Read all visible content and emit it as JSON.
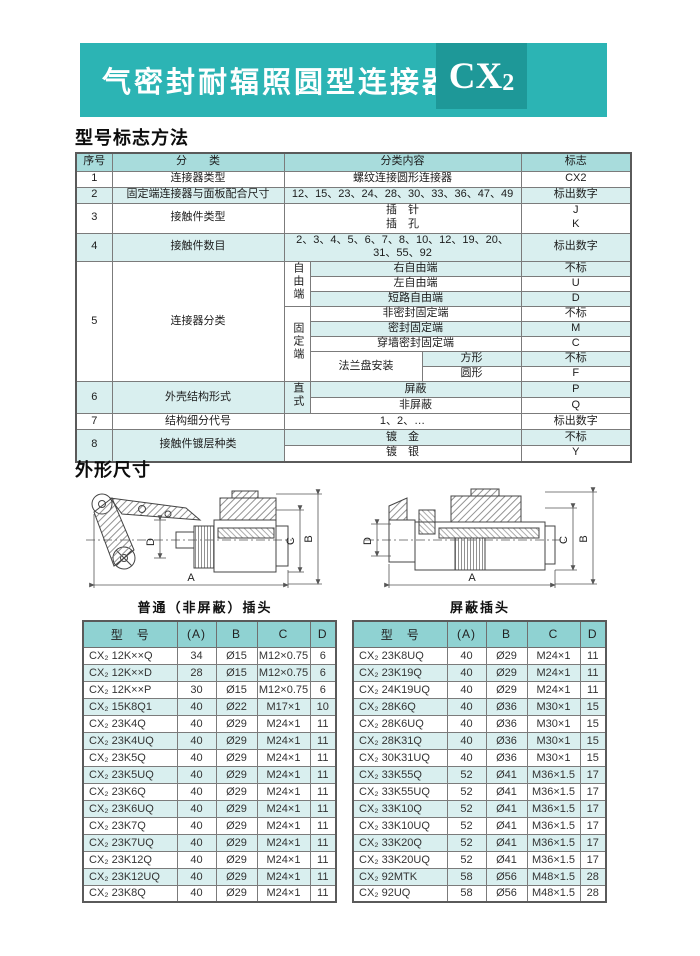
{
  "banner": {
    "title": "气密封耐辐照圆型连接器",
    "model_main": "CX",
    "model_sub": "2"
  },
  "sections": {
    "marking": "型号标志方法",
    "outline": "外形尺寸"
  },
  "marking_table": {
    "headers": {
      "no": "序号",
      "category": "分　　类",
      "content": "分类内容",
      "mark": "标志"
    },
    "r1": {
      "no": "1",
      "cat": "连接器类型",
      "content": "螺纹连接圆形连接器",
      "mark": "CX2"
    },
    "r2": {
      "no": "2",
      "cat": "固定端连接器与面板配合尺寸",
      "content": "12、15、23、24、28、30、33、36、47、49",
      "mark": "标出数字"
    },
    "r3": {
      "no": "3",
      "cat": "接触件类型",
      "line1": "插　针",
      "mark1": "J",
      "line2": "插　孔",
      "mark2": "K"
    },
    "r4": {
      "no": "4",
      "cat": "接触件数目",
      "content": "2、3、4、5、6、7、8、10、12、19、20、31、55、92",
      "mark": "标出数字"
    },
    "r5": {
      "no": "5",
      "cat": "连接器分类",
      "free_group": "自由端",
      "rows_free": [
        {
          "label": "右自由端",
          "mark": "不标"
        },
        {
          "label": "左自由端",
          "mark": "U"
        },
        {
          "label": "短路自由端",
          "mark": "D"
        }
      ],
      "fixed_group": "固定端",
      "rows_fixed": [
        {
          "label": "非密封固定端",
          "mark": "不标"
        },
        {
          "label": "密封固定端",
          "mark": "M"
        },
        {
          "label": "穿墙密封固定端",
          "mark": "C"
        }
      ],
      "flange_label": "法兰盘安装",
      "flange_rows": [
        {
          "label": "方形",
          "mark": "不标"
        },
        {
          "label": "圆形",
          "mark": "F"
        }
      ]
    },
    "r6": {
      "no": "6",
      "cat": "外壳结构形式",
      "group": "直式",
      "rows": [
        {
          "label": "屏蔽",
          "mark": "P"
        },
        {
          "label": "非屏蔽",
          "mark": "Q"
        }
      ]
    },
    "r7": {
      "no": "7",
      "cat": "结构细分代号",
      "content": "1、2、…",
      "mark": "标出数字"
    },
    "r8": {
      "no": "8",
      "cat": "接触件镀层种类",
      "rows": [
        {
          "label": "镀　金",
          "mark": "不标"
        },
        {
          "label": "镀　银",
          "mark": "Y"
        }
      ]
    }
  },
  "drawings": {
    "left_caption": "普通（非屏蔽）插头",
    "right_caption": "屏蔽插头",
    "dims": {
      "a": "A",
      "b": "B",
      "c": "C",
      "d": "D"
    }
  },
  "plug_tables": {
    "left": {
      "headers": [
        "型　号",
        "(A)",
        "B",
        "C",
        "D"
      ],
      "rows": [
        [
          "CX₂ 12K××Q",
          "34",
          "Ø15",
          "M12×0.75",
          "6"
        ],
        [
          "CX₂ 12K××D",
          "28",
          "Ø15",
          "M12×0.75",
          "6"
        ],
        [
          "CX₂ 12K××P",
          "30",
          "Ø15",
          "M12×0.75",
          "6"
        ],
        [
          "CX₂ 15K8Q1",
          "40",
          "Ø22",
          "M17×1",
          "10"
        ],
        [
          "CX₂ 23K4Q",
          "40",
          "Ø29",
          "M24×1",
          "11"
        ],
        [
          "CX₂ 23K4UQ",
          "40",
          "Ø29",
          "M24×1",
          "11"
        ],
        [
          "CX₂ 23K5Q",
          "40",
          "Ø29",
          "M24×1",
          "11"
        ],
        [
          "CX₂ 23K5UQ",
          "40",
          "Ø29",
          "M24×1",
          "11"
        ],
        [
          "CX₂ 23K6Q",
          "40",
          "Ø29",
          "M24×1",
          "11"
        ],
        [
          "CX₂ 23K6UQ",
          "40",
          "Ø29",
          "M24×1",
          "11"
        ],
        [
          "CX₂ 23K7Q",
          "40",
          "Ø29",
          "M24×1",
          "11"
        ],
        [
          "CX₂ 23K7UQ",
          "40",
          "Ø29",
          "M24×1",
          "11"
        ],
        [
          "CX₂ 23K12Q",
          "40",
          "Ø29",
          "M24×1",
          "11"
        ],
        [
          "CX₂ 23K12UQ",
          "40",
          "Ø29",
          "M24×1",
          "11"
        ],
        [
          "CX₂ 23K8Q",
          "40",
          "Ø29",
          "M24×1",
          "11"
        ]
      ]
    },
    "right": {
      "headers": [
        "型　号",
        "(A)",
        "B",
        "C",
        "D"
      ],
      "rows": [
        [
          "CX₂ 23K8UQ",
          "40",
          "Ø29",
          "M24×1",
          "11"
        ],
        [
          "CX₂ 23K19Q",
          "40",
          "Ø29",
          "M24×1",
          "11"
        ],
        [
          "CX₂ 24K19UQ",
          "40",
          "Ø29",
          "M24×1",
          "11"
        ],
        [
          "CX₂ 28K6Q",
          "40",
          "Ø36",
          "M30×1",
          "15"
        ],
        [
          "CX₂ 28K6UQ",
          "40",
          "Ø36",
          "M30×1",
          "15"
        ],
        [
          "CX₂ 28K31Q",
          "40",
          "Ø36",
          "M30×1",
          "15"
        ],
        [
          "CX₂ 30K31UQ",
          "40",
          "Ø36",
          "M30×1",
          "15"
        ],
        [
          "CX₂ 33K55Q",
          "52",
          "Ø41",
          "M36×1.5",
          "17"
        ],
        [
          "CX₂ 33K55UQ",
          "52",
          "Ø41",
          "M36×1.5",
          "17"
        ],
        [
          "CX₂ 33K10Q",
          "52",
          "Ø41",
          "M36×1.5",
          "17"
        ],
        [
          "CX₂ 33K10UQ",
          "52",
          "Ø41",
          "M36×1.5",
          "17"
        ],
        [
          "CX₂ 33K20Q",
          "52",
          "Ø41",
          "M36×1.5",
          "17"
        ],
        [
          "CX₂ 33K20UQ",
          "52",
          "Ø41",
          "M36×1.5",
          "17"
        ],
        [
          "CX₂ 92MTK",
          "58",
          "Ø56",
          "M48×1.5",
          "28"
        ],
        [
          "CX₂ 92UQ",
          "58",
          "Ø56",
          "M48×1.5",
          "28"
        ]
      ]
    }
  }
}
